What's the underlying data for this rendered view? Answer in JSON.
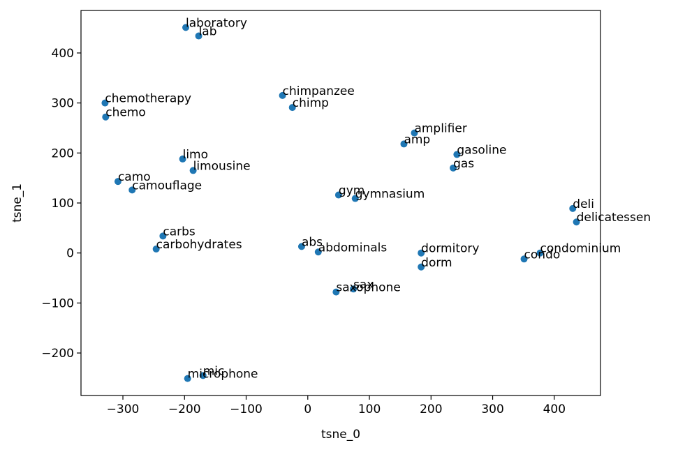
{
  "chart_data": {
    "type": "scatter",
    "title": "",
    "xlabel": "tsne_0",
    "ylabel": "tsne_1",
    "xlim": [
      -368,
      475
    ],
    "ylim": [
      -285,
      485
    ],
    "xticks": [
      -300,
      -200,
      -100,
      0,
      100,
      200,
      300,
      400
    ],
    "yticks": [
      -200,
      -100,
      0,
      100,
      200,
      300,
      400
    ],
    "xtick_labels": [
      "−300",
      "−200",
      "−100",
      "0",
      "100",
      "200",
      "300",
      "400"
    ],
    "ytick_labels": [
      "−200",
      "−100",
      "0",
      "100",
      "200",
      "300",
      "400"
    ],
    "grid": false,
    "point_color": "#1f77b4",
    "points": [
      {
        "label": "laboratory",
        "x": -198,
        "y": 451
      },
      {
        "label": "lab",
        "x": -177,
        "y": 434
      },
      {
        "label": "chemotherapy",
        "x": -329,
        "y": 300
      },
      {
        "label": "chemo",
        "x": -328,
        "y": 272
      },
      {
        "label": "chimpanzee",
        "x": -41,
        "y": 315
      },
      {
        "label": "chimp",
        "x": -25,
        "y": 291
      },
      {
        "label": "amplifier",
        "x": 173,
        "y": 240
      },
      {
        "label": "amp",
        "x": 156,
        "y": 218
      },
      {
        "label": "gasoline",
        "x": 242,
        "y": 197
      },
      {
        "label": "gas",
        "x": 236,
        "y": 170
      },
      {
        "label": "limo",
        "x": -203,
        "y": 188
      },
      {
        "label": "limousine",
        "x": -186,
        "y": 165
      },
      {
        "label": "camo",
        "x": -308,
        "y": 143
      },
      {
        "label": "camouflage",
        "x": -285,
        "y": 126
      },
      {
        "label": "gym",
        "x": 50,
        "y": 116
      },
      {
        "label": "gymnasium",
        "x": 77,
        "y": 109
      },
      {
        "label": "deli",
        "x": 430,
        "y": 89
      },
      {
        "label": "delicatessen",
        "x": 436,
        "y": 62
      },
      {
        "label": "carbs",
        "x": -235,
        "y": 34
      },
      {
        "label": "carbohydrates",
        "x": -246,
        "y": 8
      },
      {
        "label": "abs",
        "x": -10,
        "y": 13
      },
      {
        "label": "abdominals",
        "x": 17,
        "y": 2
      },
      {
        "label": "dormitory",
        "x": 184,
        "y": 0
      },
      {
        "label": "dorm",
        "x": 184,
        "y": -28
      },
      {
        "label": "condominium",
        "x": 377,
        "y": 0
      },
      {
        "label": "condo",
        "x": 351,
        "y": -12
      },
      {
        "label": "sax",
        "x": 74,
        "y": -72
      },
      {
        "label": "saxophone",
        "x": 46,
        "y": -78
      },
      {
        "label": "mic",
        "x": -170,
        "y": -245
      },
      {
        "label": "microphone",
        "x": -195,
        "y": -251
      }
    ]
  }
}
